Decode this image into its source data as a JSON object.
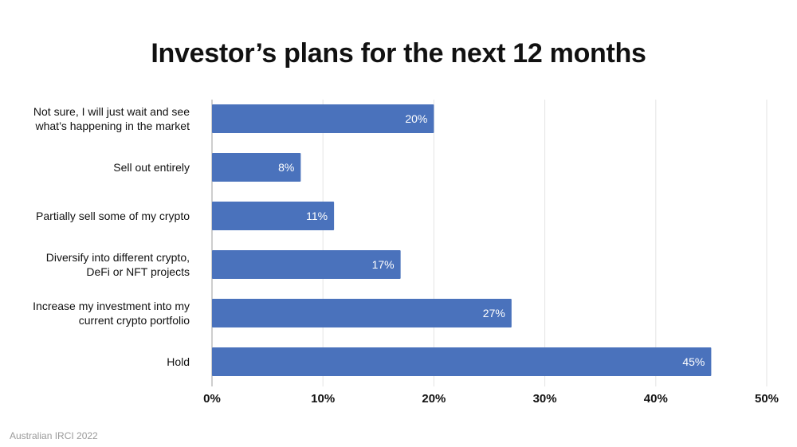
{
  "chart_data": {
    "type": "bar",
    "orientation": "horizontal",
    "title": "Investor’s plans for the next 12 months",
    "categories": [
      [
        "Not sure, I will just wait and see",
        "what’s happening in the market"
      ],
      [
        "Sell out entirely"
      ],
      [
        "Partially sell some of my crypto"
      ],
      [
        "Diversify into different crypto,",
        "DeFi or NFT projects"
      ],
      [
        "Increase my investment into my",
        "current crypto portfolio"
      ],
      [
        "Hold"
      ]
    ],
    "values": [
      20,
      8,
      11,
      17,
      27,
      45
    ],
    "data_labels": [
      "20%",
      "8%",
      "11%",
      "17%",
      "27%",
      "45%"
    ],
    "xlim": [
      0,
      50
    ],
    "x_ticks": [
      "0%",
      "10%",
      "20%",
      "30%",
      "40%",
      "50%"
    ],
    "xlabel": "",
    "ylabel": "",
    "grid": "vertical",
    "bar_color": "#4a72bc",
    "source": "Australian IRCI 2022"
  }
}
